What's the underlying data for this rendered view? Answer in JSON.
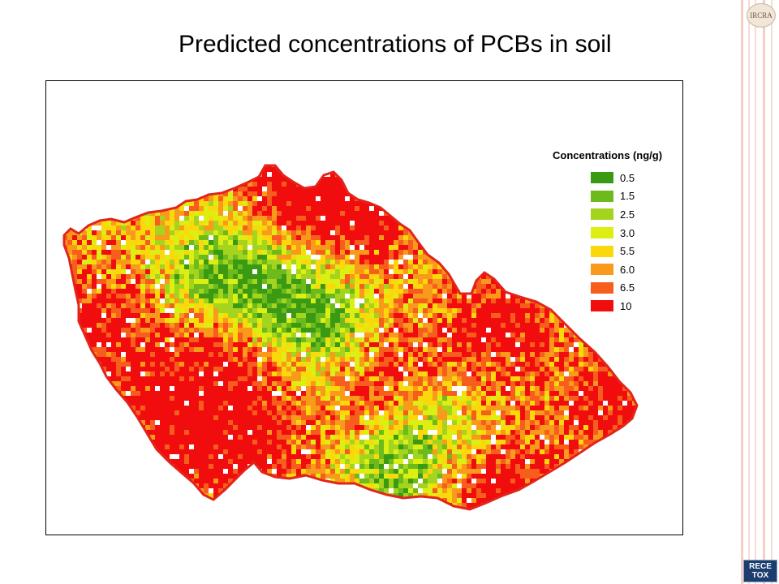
{
  "slide": {
    "title": "Predicted concentrations of PCBs in soil"
  },
  "legend": {
    "title": "Concentrations (ng/g)",
    "items": [
      {
        "label": "0.5",
        "color": "#3a9a13"
      },
      {
        "label": "1.5",
        "color": "#6cba1b"
      },
      {
        "label": "2.5",
        "color": "#a5d41e"
      },
      {
        "label": "3.0",
        "color": "#dcee12"
      },
      {
        "label": "5.5",
        "color": "#fbd80c"
      },
      {
        "label": "6.0",
        "color": "#f99a1a"
      },
      {
        "label": "6.5",
        "color": "#f75d1c"
      },
      {
        "label": "10",
        "color": "#f10d0d"
      }
    ]
  },
  "map": {
    "country": "Czech Republic"
  },
  "logos": {
    "top": "IRCRA",
    "bottom_line1": "RECE",
    "bottom_line2": "TOX"
  }
}
